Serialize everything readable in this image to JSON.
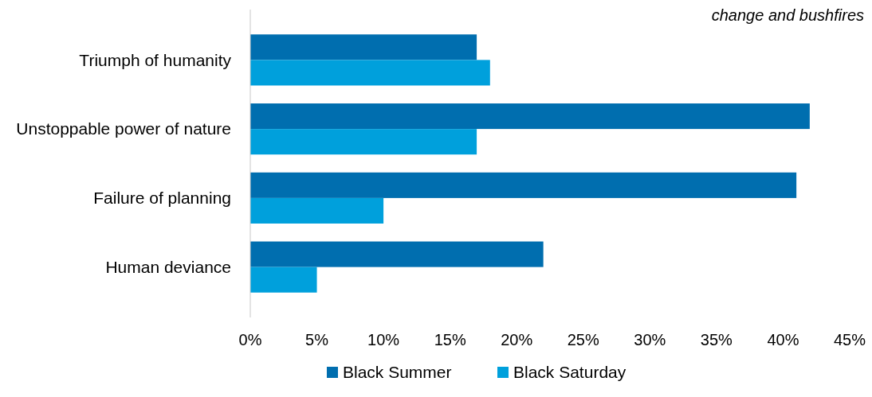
{
  "chart_data": {
    "type": "bar",
    "orientation": "horizontal",
    "categories": [
      "Triumph of humanity",
      "Unstoppable power of nature",
      "Failure of planning",
      "Human deviance"
    ],
    "series": [
      {
        "name": "Black Summer",
        "color": "#006eaf",
        "values": [
          17,
          42,
          41,
          22
        ]
      },
      {
        "name": "Black Saturday",
        "color": "#00a0dc",
        "values": [
          18,
          17,
          10,
          5
        ]
      }
    ],
    "xlim": [
      0,
      45
    ],
    "xticks": [
      {
        "value": 0,
        "label": "0%"
      },
      {
        "value": 5,
        "label": "5%"
      },
      {
        "value": 10,
        "label": "10%"
      },
      {
        "value": 15,
        "label": "15%"
      },
      {
        "value": 20,
        "label": "20%"
      },
      {
        "value": 25,
        "label": "25%"
      },
      {
        "value": 30,
        "label": "30%"
      },
      {
        "value": 35,
        "label": "35%"
      },
      {
        "value": 40,
        "label": "40%"
      },
      {
        "value": 45,
        "label": "45%"
      }
    ],
    "legend": "bottom",
    "annotations": [
      "change and bushfires"
    ]
  }
}
